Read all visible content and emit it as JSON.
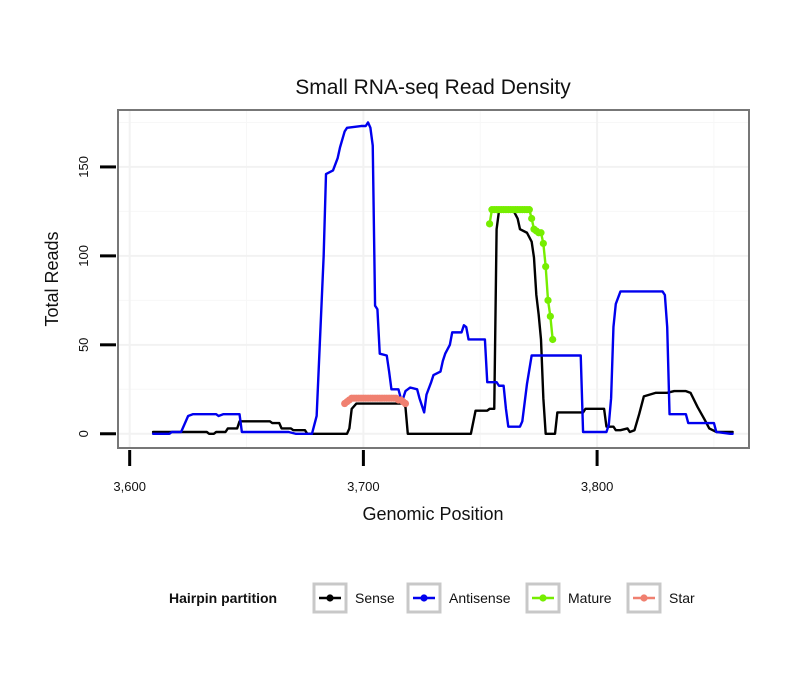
{
  "chart_data": {
    "type": "line",
    "title": "Small RNA-seq Read Density",
    "xlabel": "Genomic Position",
    "ylabel": "Total Reads",
    "xlim": [
      3595,
      3865
    ],
    "ylim": [
      -8,
      182
    ],
    "x_ticks": [
      3600,
      3700,
      3800
    ],
    "x_tick_labels": [
      "3,600",
      "3,700",
      "3,800"
    ],
    "y_ticks": [
      0,
      50,
      100,
      150
    ],
    "y_tick_labels": [
      "0",
      "50",
      "100",
      "150"
    ],
    "grid": true,
    "legend": {
      "title": "Hairpin partition",
      "position": "bottom",
      "entries": [
        "Sense",
        "Antisense",
        "Mature",
        "Star"
      ]
    },
    "series": [
      {
        "name": "Sense",
        "color": "#000000",
        "style": "line",
        "points": [
          [
            3610,
            1
          ],
          [
            3633,
            1
          ],
          [
            3634,
            0
          ],
          [
            3636,
            0
          ],
          [
            3637,
            1
          ],
          [
            3641,
            1
          ],
          [
            3642,
            3
          ],
          [
            3646,
            3
          ],
          [
            3647,
            7
          ],
          [
            3660,
            7
          ],
          [
            3661,
            6
          ],
          [
            3664,
            6
          ],
          [
            3665,
            3
          ],
          [
            3669,
            3
          ],
          [
            3670,
            2
          ],
          [
            3675,
            2
          ],
          [
            3676,
            0
          ],
          [
            3693,
            0
          ],
          [
            3694,
            3
          ],
          [
            3695,
            14
          ],
          [
            3697,
            17
          ],
          [
            3717,
            17
          ],
          [
            3718,
            15
          ],
          [
            3719,
            0
          ],
          [
            3746,
            0
          ],
          [
            3748,
            13
          ],
          [
            3753,
            13
          ],
          [
            3754,
            14
          ],
          [
            3756,
            14
          ],
          [
            3757,
            115
          ],
          [
            3758,
            125
          ],
          [
            3760,
            126
          ],
          [
            3764,
            126
          ],
          [
            3766,
            121
          ],
          [
            3767,
            115
          ],
          [
            3770,
            113
          ],
          [
            3772,
            108
          ],
          [
            3773,
            99
          ],
          [
            3774,
            78
          ],
          [
            3775,
            67
          ],
          [
            3776,
            53
          ],
          [
            3777,
            20
          ],
          [
            3778,
            0
          ],
          [
            3782,
            0
          ],
          [
            3783,
            12
          ],
          [
            3794,
            12
          ],
          [
            3795,
            14
          ],
          [
            3803,
            14
          ],
          [
            3804,
            4
          ],
          [
            3807,
            4
          ],
          [
            3808,
            2
          ],
          [
            3810,
            2
          ],
          [
            3813,
            3
          ],
          [
            3814,
            1
          ],
          [
            3816,
            2
          ],
          [
            3818,
            11
          ],
          [
            3820,
            21
          ],
          [
            3825,
            23
          ],
          [
            3830,
            23
          ],
          [
            3833,
            24
          ],
          [
            3838,
            24
          ],
          [
            3840,
            23
          ],
          [
            3843,
            15
          ],
          [
            3846,
            8
          ],
          [
            3848,
            3
          ],
          [
            3851,
            1
          ],
          [
            3858,
            1
          ]
        ]
      },
      {
        "name": "Antisense",
        "color": "#0000ee",
        "style": "line",
        "points": [
          [
            3610,
            0
          ],
          [
            3617,
            0
          ],
          [
            3618,
            1
          ],
          [
            3622,
            1
          ],
          [
            3625,
            10
          ],
          [
            3627,
            11
          ],
          [
            3637,
            11
          ],
          [
            3638,
            10
          ],
          [
            3640,
            11
          ],
          [
            3647,
            11
          ],
          [
            3648,
            1
          ],
          [
            3668,
            1
          ],
          [
            3671,
            0
          ],
          [
            3678,
            0
          ],
          [
            3680,
            10
          ],
          [
            3683,
            100
          ],
          [
            3684,
            146
          ],
          [
            3687,
            148
          ],
          [
            3689,
            155
          ],
          [
            3690,
            161
          ],
          [
            3692,
            170
          ],
          [
            3693,
            172
          ],
          [
            3699,
            173
          ],
          [
            3701,
            173
          ],
          [
            3702,
            175
          ],
          [
            3703,
            172
          ],
          [
            3704,
            162
          ],
          [
            3705,
            72
          ],
          [
            3706,
            70
          ],
          [
            3707,
            45
          ],
          [
            3710,
            44
          ],
          [
            3711,
            35
          ],
          [
            3712,
            25
          ],
          [
            3715,
            25
          ],
          [
            3716,
            20
          ],
          [
            3717,
            20
          ],
          [
            3718,
            24
          ],
          [
            3720,
            26
          ],
          [
            3723,
            25
          ],
          [
            3724,
            20
          ],
          [
            3726,
            12
          ],
          [
            3727,
            22
          ],
          [
            3729,
            29
          ],
          [
            3730,
            33
          ],
          [
            3733,
            35
          ],
          [
            3734,
            41
          ],
          [
            3735,
            45
          ],
          [
            3737,
            50
          ],
          [
            3738,
            57
          ],
          [
            3742,
            57
          ],
          [
            3743,
            61
          ],
          [
            3744,
            60
          ],
          [
            3745,
            53
          ],
          [
            3752,
            53
          ],
          [
            3753,
            29
          ],
          [
            3757,
            29
          ],
          [
            3758,
            27
          ],
          [
            3760,
            27
          ],
          [
            3761,
            14
          ],
          [
            3762,
            4
          ],
          [
            3767,
            4
          ],
          [
            3768,
            7
          ],
          [
            3770,
            28
          ],
          [
            3772,
            44
          ],
          [
            3780,
            44
          ],
          [
            3793,
            44
          ],
          [
            3794,
            1
          ],
          [
            3804,
            1
          ],
          [
            3805,
            5
          ],
          [
            3806,
            20
          ],
          [
            3807,
            60
          ],
          [
            3808,
            73
          ],
          [
            3810,
            80
          ],
          [
            3818,
            80
          ],
          [
            3828,
            80
          ],
          [
            3829,
            78
          ],
          [
            3830,
            60
          ],
          [
            3831,
            11
          ],
          [
            3838,
            11
          ],
          [
            3839,
            6
          ],
          [
            3850,
            6
          ],
          [
            3851,
            1
          ],
          [
            3857,
            0
          ],
          [
            3858,
            0
          ]
        ]
      },
      {
        "name": "Mature",
        "color": "#76ee00",
        "style": "line-points",
        "points": [
          [
            3754,
            118
          ],
          [
            3755,
            126
          ],
          [
            3756,
            126
          ],
          [
            3757,
            126
          ],
          [
            3758,
            126
          ],
          [
            3759,
            126
          ],
          [
            3760,
            126
          ],
          [
            3761,
            126
          ],
          [
            3762,
            126
          ],
          [
            3763,
            126
          ],
          [
            3764,
            126
          ],
          [
            3765,
            126
          ],
          [
            3766,
            126
          ],
          [
            3767,
            126
          ],
          [
            3768,
            126
          ],
          [
            3769,
            126
          ],
          [
            3770,
            126
          ],
          [
            3771,
            126
          ],
          [
            3772,
            121
          ],
          [
            3773,
            115
          ],
          [
            3774,
            114
          ],
          [
            3775,
            113
          ],
          [
            3776,
            113
          ],
          [
            3777,
            107
          ],
          [
            3778,
            94
          ],
          [
            3779,
            75
          ],
          [
            3780,
            66
          ],
          [
            3781,
            53
          ]
        ]
      },
      {
        "name": "Star",
        "color": "#f08070",
        "style": "line-points",
        "points": [
          [
            3692,
            17
          ],
          [
            3693,
            18
          ],
          [
            3694,
            19
          ],
          [
            3695,
            20
          ],
          [
            3696,
            20
          ],
          [
            3697,
            20
          ],
          [
            3698,
            20
          ],
          [
            3699,
            20
          ],
          [
            3700,
            20
          ],
          [
            3701,
            20
          ],
          [
            3702,
            20
          ],
          [
            3703,
            20
          ],
          [
            3704,
            20
          ],
          [
            3705,
            20
          ],
          [
            3706,
            20
          ],
          [
            3707,
            20
          ],
          [
            3708,
            20
          ],
          [
            3709,
            20
          ],
          [
            3710,
            20
          ],
          [
            3711,
            20
          ],
          [
            3712,
            20
          ],
          [
            3713,
            20
          ],
          [
            3714,
            20
          ],
          [
            3715,
            19
          ],
          [
            3716,
            19
          ],
          [
            3717,
            18
          ],
          [
            3718,
            17
          ]
        ]
      }
    ]
  }
}
